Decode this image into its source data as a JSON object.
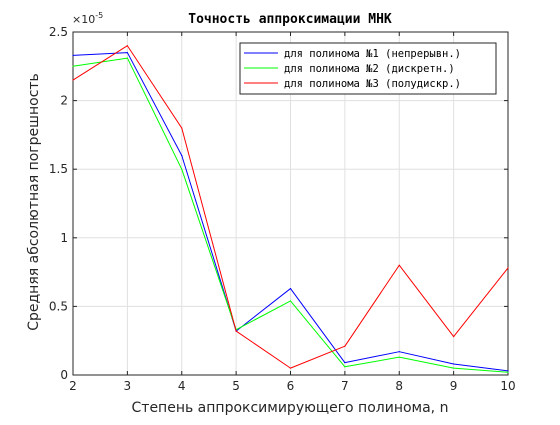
{
  "chart_data": {
    "type": "line",
    "title": "Точность аппроксимации МНК",
    "xlabel": "Степень аппроксимирующего полинома, n",
    "ylabel": "Средняя абсолютная погрешность",
    "y_exponent_label": "×10",
    "y_exponent_power": "-5",
    "xlim": [
      2,
      10
    ],
    "ylim": [
      0,
      2.5
    ],
    "x_ticks": [
      "2",
      "3",
      "4",
      "5",
      "6",
      "7",
      "8",
      "9",
      "10"
    ],
    "y_ticks": [
      "0",
      "0.5",
      "1",
      "1.5",
      "2",
      "2.5"
    ],
    "grid": true,
    "legend_position": "top-right",
    "x": [
      2,
      3,
      4,
      5,
      6,
      7,
      8,
      9,
      10
    ],
    "series": [
      {
        "name": "для полинома №1 (непрерывн.)",
        "color": "#0000ff",
        "values": [
          2.33,
          2.35,
          1.6,
          0.32,
          0.63,
          0.09,
          0.17,
          0.08,
          0.03
        ]
      },
      {
        "name": "для полинома №2 (дискретн.)",
        "color": "#00ff00",
        "values": [
          2.25,
          2.31,
          1.5,
          0.33,
          0.54,
          0.06,
          0.13,
          0.05,
          0.02
        ]
      },
      {
        "name": "для полинома №3 (полудискр.)",
        "color": "#ff0000",
        "values": [
          2.15,
          2.4,
          1.8,
          0.32,
          0.05,
          0.21,
          0.8,
          0.28,
          0.78
        ]
      }
    ]
  }
}
